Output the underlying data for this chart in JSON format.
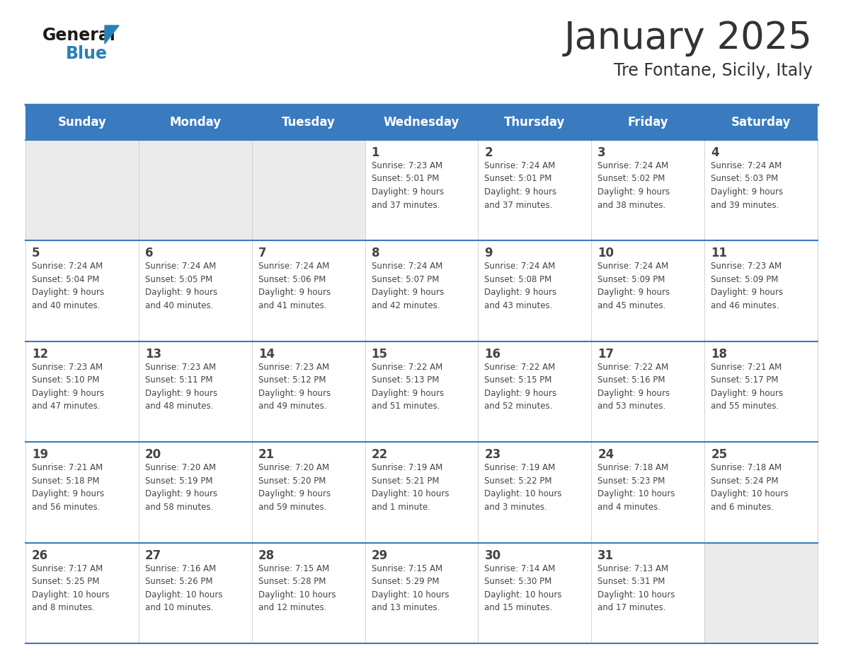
{
  "title": "January 2025",
  "subtitle": "Tre Fontane, Sicily, Italy",
  "days_of_week": [
    "Sunday",
    "Monday",
    "Tuesday",
    "Wednesday",
    "Thursday",
    "Friday",
    "Saturday"
  ],
  "header_bg": "#3a7abf",
  "header_text": "#ffffff",
  "cell_bg_empty": "#ebebeb",
  "cell_bg_filled": "#ffffff",
  "border_color": "#3a7abf",
  "border_color_light": "#3a7abf",
  "text_color": "#444444",
  "title_color": "#333333",
  "logo_general_color": "#1a1a1a",
  "logo_blue_color": "#2980b9",
  "logo_triangle_color": "#2980b9",
  "calendar_data": [
    [
      {
        "day": "",
        "info": ""
      },
      {
        "day": "",
        "info": ""
      },
      {
        "day": "",
        "info": ""
      },
      {
        "day": "1",
        "info": "Sunrise: 7:23 AM\nSunset: 5:01 PM\nDaylight: 9 hours\nand 37 minutes."
      },
      {
        "day": "2",
        "info": "Sunrise: 7:24 AM\nSunset: 5:01 PM\nDaylight: 9 hours\nand 37 minutes."
      },
      {
        "day": "3",
        "info": "Sunrise: 7:24 AM\nSunset: 5:02 PM\nDaylight: 9 hours\nand 38 minutes."
      },
      {
        "day": "4",
        "info": "Sunrise: 7:24 AM\nSunset: 5:03 PM\nDaylight: 9 hours\nand 39 minutes."
      }
    ],
    [
      {
        "day": "5",
        "info": "Sunrise: 7:24 AM\nSunset: 5:04 PM\nDaylight: 9 hours\nand 40 minutes."
      },
      {
        "day": "6",
        "info": "Sunrise: 7:24 AM\nSunset: 5:05 PM\nDaylight: 9 hours\nand 40 minutes."
      },
      {
        "day": "7",
        "info": "Sunrise: 7:24 AM\nSunset: 5:06 PM\nDaylight: 9 hours\nand 41 minutes."
      },
      {
        "day": "8",
        "info": "Sunrise: 7:24 AM\nSunset: 5:07 PM\nDaylight: 9 hours\nand 42 minutes."
      },
      {
        "day": "9",
        "info": "Sunrise: 7:24 AM\nSunset: 5:08 PM\nDaylight: 9 hours\nand 43 minutes."
      },
      {
        "day": "10",
        "info": "Sunrise: 7:24 AM\nSunset: 5:09 PM\nDaylight: 9 hours\nand 45 minutes."
      },
      {
        "day": "11",
        "info": "Sunrise: 7:23 AM\nSunset: 5:09 PM\nDaylight: 9 hours\nand 46 minutes."
      }
    ],
    [
      {
        "day": "12",
        "info": "Sunrise: 7:23 AM\nSunset: 5:10 PM\nDaylight: 9 hours\nand 47 minutes."
      },
      {
        "day": "13",
        "info": "Sunrise: 7:23 AM\nSunset: 5:11 PM\nDaylight: 9 hours\nand 48 minutes."
      },
      {
        "day": "14",
        "info": "Sunrise: 7:23 AM\nSunset: 5:12 PM\nDaylight: 9 hours\nand 49 minutes."
      },
      {
        "day": "15",
        "info": "Sunrise: 7:22 AM\nSunset: 5:13 PM\nDaylight: 9 hours\nand 51 minutes."
      },
      {
        "day": "16",
        "info": "Sunrise: 7:22 AM\nSunset: 5:15 PM\nDaylight: 9 hours\nand 52 minutes."
      },
      {
        "day": "17",
        "info": "Sunrise: 7:22 AM\nSunset: 5:16 PM\nDaylight: 9 hours\nand 53 minutes."
      },
      {
        "day": "18",
        "info": "Sunrise: 7:21 AM\nSunset: 5:17 PM\nDaylight: 9 hours\nand 55 minutes."
      }
    ],
    [
      {
        "day": "19",
        "info": "Sunrise: 7:21 AM\nSunset: 5:18 PM\nDaylight: 9 hours\nand 56 minutes."
      },
      {
        "day": "20",
        "info": "Sunrise: 7:20 AM\nSunset: 5:19 PM\nDaylight: 9 hours\nand 58 minutes."
      },
      {
        "day": "21",
        "info": "Sunrise: 7:20 AM\nSunset: 5:20 PM\nDaylight: 9 hours\nand 59 minutes."
      },
      {
        "day": "22",
        "info": "Sunrise: 7:19 AM\nSunset: 5:21 PM\nDaylight: 10 hours\nand 1 minute."
      },
      {
        "day": "23",
        "info": "Sunrise: 7:19 AM\nSunset: 5:22 PM\nDaylight: 10 hours\nand 3 minutes."
      },
      {
        "day": "24",
        "info": "Sunrise: 7:18 AM\nSunset: 5:23 PM\nDaylight: 10 hours\nand 4 minutes."
      },
      {
        "day": "25",
        "info": "Sunrise: 7:18 AM\nSunset: 5:24 PM\nDaylight: 10 hours\nand 6 minutes."
      }
    ],
    [
      {
        "day": "26",
        "info": "Sunrise: 7:17 AM\nSunset: 5:25 PM\nDaylight: 10 hours\nand 8 minutes."
      },
      {
        "day": "27",
        "info": "Sunrise: 7:16 AM\nSunset: 5:26 PM\nDaylight: 10 hours\nand 10 minutes."
      },
      {
        "day": "28",
        "info": "Sunrise: 7:15 AM\nSunset: 5:28 PM\nDaylight: 10 hours\nand 12 minutes."
      },
      {
        "day": "29",
        "info": "Sunrise: 7:15 AM\nSunset: 5:29 PM\nDaylight: 10 hours\nand 13 minutes."
      },
      {
        "day": "30",
        "info": "Sunrise: 7:14 AM\nSunset: 5:30 PM\nDaylight: 10 hours\nand 15 minutes."
      },
      {
        "day": "31",
        "info": "Sunrise: 7:13 AM\nSunset: 5:31 PM\nDaylight: 10 hours\nand 17 minutes."
      },
      {
        "day": "",
        "info": ""
      }
    ]
  ]
}
